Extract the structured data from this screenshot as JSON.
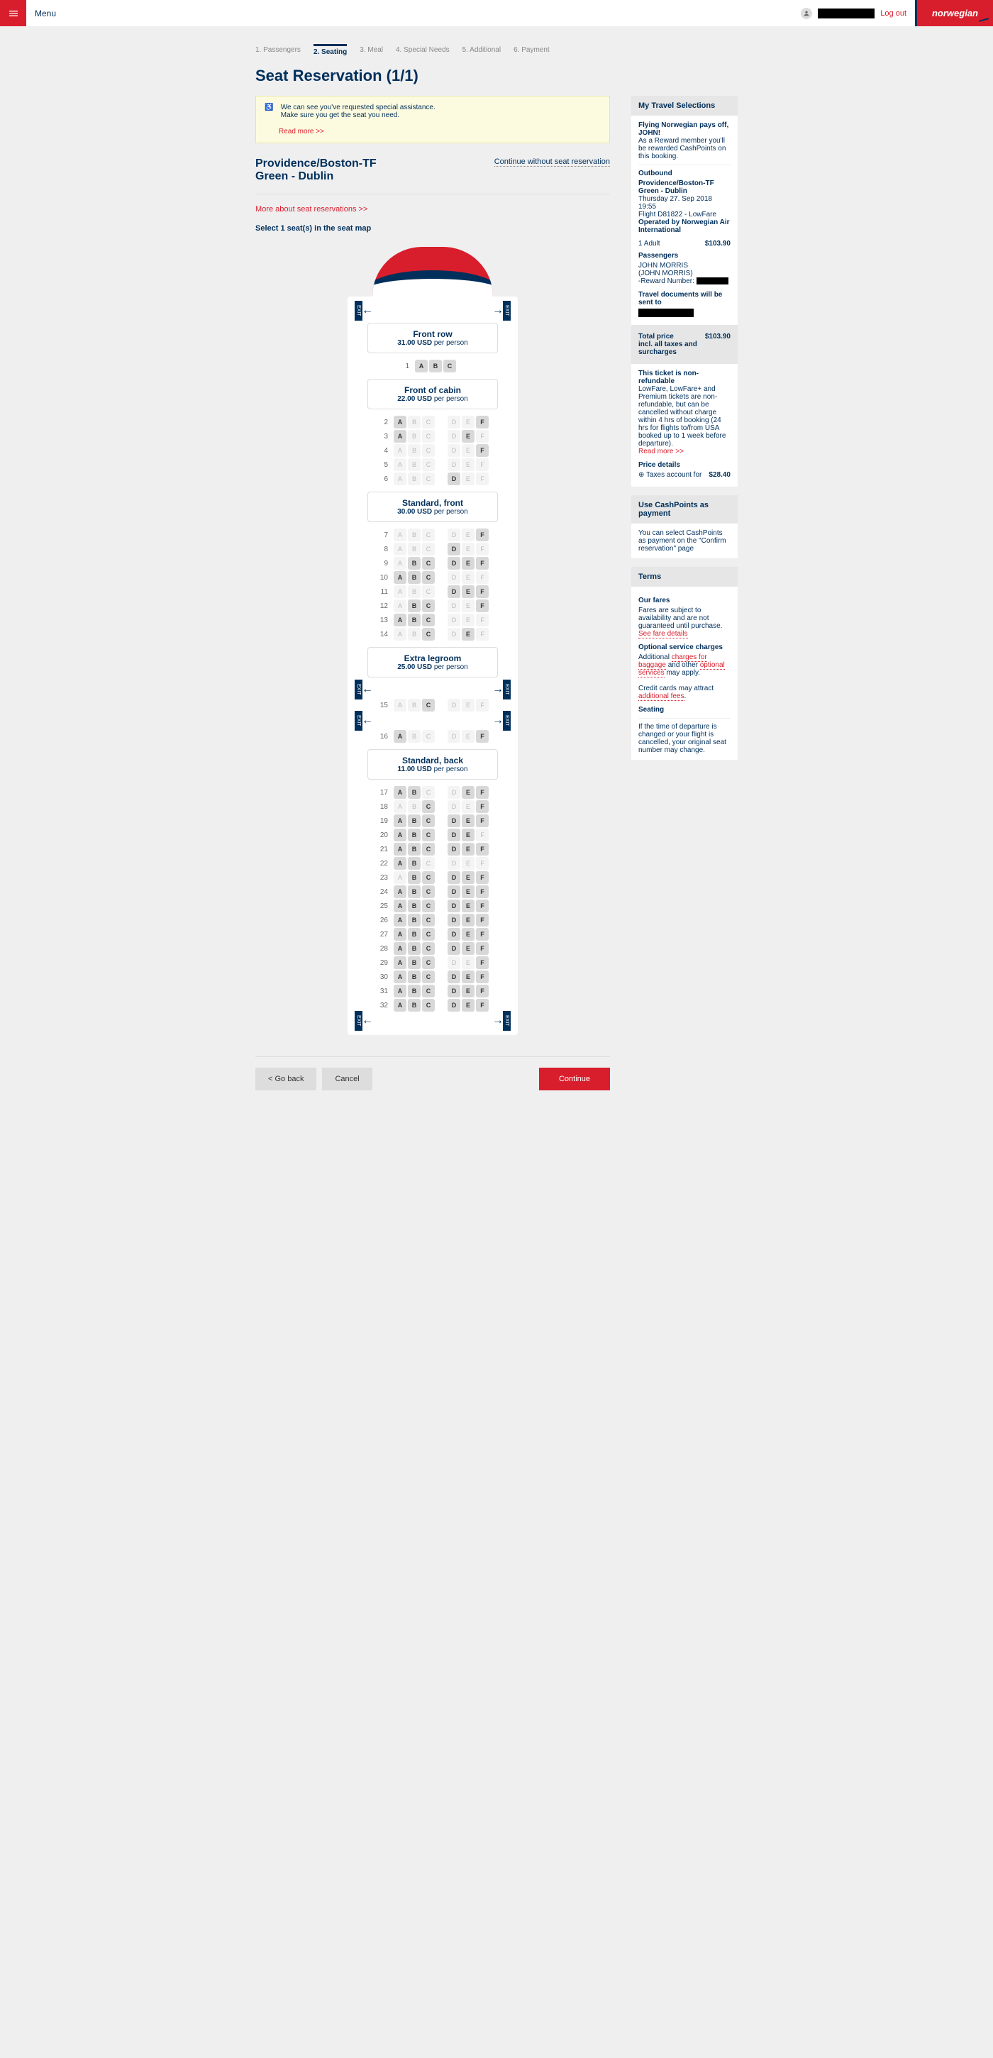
{
  "topbar": {
    "menu": "Menu",
    "logout": "Log out",
    "brand": "norwegian"
  },
  "steps": [
    {
      "label": "1. Passengers",
      "active": false
    },
    {
      "label": "2. Seating",
      "active": true
    },
    {
      "label": "3. Meal",
      "active": false
    },
    {
      "label": "4. Special Needs",
      "active": false
    },
    {
      "label": "5. Additional",
      "active": false
    },
    {
      "label": "6. Payment",
      "active": false
    }
  ],
  "page_title": "Seat Reservation (1/1)",
  "notice": {
    "line1": "We can see you've requested special assistance.",
    "line2": "Make sure you get the seat you need.",
    "readmore": "Read more >>"
  },
  "route": {
    "title": "Providence/Boston-TF Green - Dublin",
    "skip": "Continue without seat reservation"
  },
  "more_link": "More about seat reservations >>",
  "instruction": "Select 1 seat(s) in the seat map",
  "sections": [
    {
      "name": "Front row",
      "price": "31.00 USD",
      "per": " per person"
    },
    {
      "name": "Front of cabin",
      "price": "22.00 USD",
      "per": " per person"
    },
    {
      "name": "Standard, front",
      "price": "30.00 USD",
      "per": " per person"
    },
    {
      "name": "Extra legroom",
      "price": "25.00 USD",
      "per": " per person"
    },
    {
      "name": "Standard, back",
      "price": "11.00 USD",
      "per": " per person"
    }
  ],
  "cols": [
    "A",
    "B",
    "C",
    "D",
    "E",
    "F"
  ],
  "rows": [
    {
      "n": 1,
      "section": 0,
      "seats": [
        "a",
        "a",
        "a",
        null,
        null,
        null
      ]
    },
    {
      "n": 2,
      "section": 1,
      "seats": [
        "a",
        "u",
        "u",
        "u",
        "u",
        "a"
      ]
    },
    {
      "n": 3,
      "section": 1,
      "seats": [
        "a",
        "u",
        "u",
        "u",
        "a",
        "u"
      ]
    },
    {
      "n": 4,
      "section": 1,
      "seats": [
        "u",
        "u",
        "u",
        "u",
        "u",
        "a"
      ]
    },
    {
      "n": 5,
      "section": 1,
      "seats": [
        "u",
        "u",
        "u",
        "u",
        "u",
        "u"
      ]
    },
    {
      "n": 6,
      "section": 1,
      "seats": [
        "u",
        "u",
        "u",
        "a",
        "u",
        "u"
      ]
    },
    {
      "n": 7,
      "section": 2,
      "seats": [
        "u",
        "u",
        "u",
        "u",
        "u",
        "a"
      ]
    },
    {
      "n": 8,
      "section": 2,
      "seats": [
        "u",
        "u",
        "u",
        "a",
        "u",
        "u"
      ]
    },
    {
      "n": 9,
      "section": 2,
      "seats": [
        "u",
        "a",
        "a",
        "a",
        "a",
        "a"
      ]
    },
    {
      "n": 10,
      "section": 2,
      "seats": [
        "a",
        "a",
        "a",
        "u",
        "u",
        "u"
      ]
    },
    {
      "n": 11,
      "section": 2,
      "seats": [
        "u",
        "u",
        "u",
        "a",
        "a",
        "a"
      ]
    },
    {
      "n": 12,
      "section": 2,
      "seats": [
        "u",
        "a",
        "a",
        "u",
        "u",
        "a"
      ]
    },
    {
      "n": 13,
      "section": 2,
      "seats": [
        "a",
        "a",
        "a",
        "u",
        "u",
        "u"
      ]
    },
    {
      "n": 14,
      "section": 2,
      "seats": [
        "u",
        "u",
        "a",
        "u",
        "a",
        "u"
      ]
    },
    {
      "n": 15,
      "section": 3,
      "seats": [
        "u",
        "u",
        "a",
        "u",
        "u",
        "u"
      ]
    },
    {
      "n": 16,
      "section": 3,
      "seats": [
        "a",
        "u",
        "u",
        "u",
        "u",
        "a"
      ]
    },
    {
      "n": 17,
      "section": 4,
      "seats": [
        "a",
        "a",
        "u",
        "u",
        "a",
        "a"
      ]
    },
    {
      "n": 18,
      "section": 4,
      "seats": [
        "u",
        "u",
        "a",
        "u",
        "u",
        "a"
      ]
    },
    {
      "n": 19,
      "section": 4,
      "seats": [
        "a",
        "a",
        "a",
        "a",
        "a",
        "a"
      ]
    },
    {
      "n": 20,
      "section": 4,
      "seats": [
        "a",
        "a",
        "a",
        "a",
        "a",
        "u"
      ]
    },
    {
      "n": 21,
      "section": 4,
      "seats": [
        "a",
        "a",
        "a",
        "a",
        "a",
        "a"
      ]
    },
    {
      "n": 22,
      "section": 4,
      "seats": [
        "a",
        "a",
        "u",
        "u",
        "u",
        "u"
      ]
    },
    {
      "n": 23,
      "section": 4,
      "seats": [
        "u",
        "a",
        "a",
        "a",
        "a",
        "a"
      ]
    },
    {
      "n": 24,
      "section": 4,
      "seats": [
        "a",
        "a",
        "a",
        "a",
        "a",
        "a"
      ]
    },
    {
      "n": 25,
      "section": 4,
      "seats": [
        "a",
        "a",
        "a",
        "a",
        "a",
        "a"
      ]
    },
    {
      "n": 26,
      "section": 4,
      "seats": [
        "a",
        "a",
        "a",
        "a",
        "a",
        "a"
      ]
    },
    {
      "n": 27,
      "section": 4,
      "seats": [
        "a",
        "a",
        "a",
        "a",
        "a",
        "a"
      ]
    },
    {
      "n": 28,
      "section": 4,
      "seats": [
        "a",
        "a",
        "a",
        "a",
        "a",
        "a"
      ]
    },
    {
      "n": 29,
      "section": 4,
      "seats": [
        "a",
        "a",
        "a",
        "u",
        "u",
        "a"
      ]
    },
    {
      "n": 30,
      "section": 4,
      "seats": [
        "a",
        "a",
        "a",
        "a",
        "a",
        "a"
      ]
    },
    {
      "n": 31,
      "section": 4,
      "seats": [
        "a",
        "a",
        "a",
        "a",
        "a",
        "a"
      ]
    },
    {
      "n": 32,
      "section": 4,
      "seats": [
        "a",
        "a",
        "a",
        "a",
        "a",
        "a"
      ]
    }
  ],
  "sidebar": {
    "selections": {
      "header": "My Travel Selections",
      "reward": "Flying Norwegian pays off, JOHN!",
      "reward2": "As a Reward member you'll be rewarded CashPoints on this booking.",
      "outbound": "Outbound",
      "route": "Providence/Boston-TF Green - Dublin",
      "date": "Thursday 27. Sep 2018 19:55",
      "flight": "Flight D81822 - LowFare",
      "operator": "Operated by Norwegian Air International",
      "adult": "1 Adult",
      "adult_price": "$103.90",
      "passengers": "Passengers",
      "pname": "JOHN MORRIS",
      "pname2": "(JOHN MORRIS)",
      "reward_num": "-Reward Number:",
      "docs": "Travel documents will be sent to",
      "total": "Total price",
      "total2": "incl. all taxes and surcharges",
      "total_price": "$103.90",
      "nonref": "This ticket is non-refundable",
      "nonref_text": "LowFare, LowFare+ and Premium tickets are non-refundable, but can be cancelled without charge within 4 hrs of booking (24 hrs for flights to/from USA booked up to 1 week before departure).",
      "readmore": "Read more >>",
      "price_details": "Price details",
      "taxes": "⊕ Taxes account for",
      "taxes_val": "$28.40"
    },
    "cashpoints": {
      "header": "Use CashPoints as payment",
      "text": "You can select CashPoints as payment on the \"Confirm reservation\" page"
    },
    "terms": {
      "header": "Terms",
      "fares": "Our fares",
      "fares_text": "Fares are subject to availability and are not guaranteed until purchase.",
      "fares_link": "See fare details",
      "optional": "Optional service charges",
      "opt1a": "Additional ",
      "opt1b": "charges for baggage",
      "opt1c": " and other ",
      "opt1d": "optional services",
      "opt1e": " may apply.",
      "opt2a": "Credit cards may attract ",
      "opt2b": "additional fees",
      "opt2c": ".",
      "seating": "Seating",
      "seating_text": "If the time of departure is changed or your flight is cancelled, your original seat number may change."
    }
  },
  "footer": {
    "back": "< Go back",
    "cancel": "Cancel",
    "continue": "Continue"
  }
}
